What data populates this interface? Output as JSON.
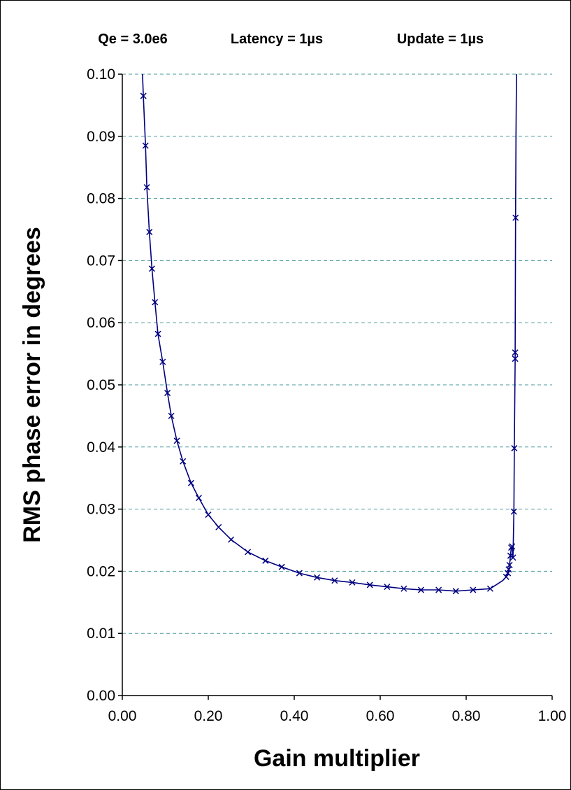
{
  "chart_data": {
    "type": "line",
    "title_parts": [
      "Qe = 3.0e6",
      "Latency = 1µs",
      "Update = 1µs"
    ],
    "xlabel": "Gain multiplier",
    "ylabel": "RMS phase error in degrees",
    "xlim": [
      0.0,
      1.0
    ],
    "ylim": [
      0.0,
      0.1
    ],
    "x_ticks": [
      "0.00",
      "0.20",
      "0.40",
      "0.60",
      "0.80",
      "1.00"
    ],
    "y_ticks": [
      "0.00",
      "0.01",
      "0.02",
      "0.03",
      "0.04",
      "0.05",
      "0.06",
      "0.07",
      "0.08",
      "0.09",
      "0.10"
    ],
    "grid": "horizontal dashed",
    "marker": "x",
    "colors": {
      "series": "#000080",
      "grid": "#4a9a9a",
      "axis": "#000000"
    },
    "series": [
      {
        "line_x": [
          0.047,
          0.049,
          0.054,
          0.057,
          0.063,
          0.069,
          0.076,
          0.083,
          0.094,
          0.105,
          0.114,
          0.127,
          0.141,
          0.16,
          0.178,
          0.2,
          0.224,
          0.253,
          0.292,
          0.333,
          0.371,
          0.412,
          0.453,
          0.494,
          0.535,
          0.576,
          0.616,
          0.655,
          0.695,
          0.736,
          0.776,
          0.816,
          0.856,
          0.885,
          0.893,
          0.897,
          0.899,
          0.901,
          0.903,
          0.905,
          0.907,
          0.909,
          0.911,
          0.912,
          0.914,
          0.914,
          0.915,
          0.916,
          0.917
        ],
        "line_y": [
          0.1,
          0.0965,
          0.0885,
          0.0818,
          0.0746,
          0.0687,
          0.0633,
          0.0582,
          0.0537,
          0.0487,
          0.045,
          0.041,
          0.0377,
          0.0342,
          0.0318,
          0.0291,
          0.0271,
          0.0251,
          0.0231,
          0.0217,
          0.0207,
          0.0197,
          0.019,
          0.0185,
          0.0182,
          0.0178,
          0.0175,
          0.0172,
          0.017,
          0.017,
          0.0168,
          0.017,
          0.0172,
          0.0185,
          0.0191,
          0.0197,
          0.0203,
          0.021,
          0.0225,
          0.0238,
          0.024,
          0.0222,
          0.0296,
          0.0398,
          0.0542,
          0.0552,
          0.0769,
          0.09,
          0.1
        ],
        "x": [
          0.049,
          0.054,
          0.057,
          0.063,
          0.069,
          0.076,
          0.083,
          0.094,
          0.105,
          0.114,
          0.127,
          0.141,
          0.16,
          0.178,
          0.2,
          0.224,
          0.253,
          0.292,
          0.333,
          0.371,
          0.412,
          0.453,
          0.494,
          0.535,
          0.576,
          0.616,
          0.655,
          0.695,
          0.736,
          0.776,
          0.816,
          0.856,
          0.893,
          0.897,
          0.899,
          0.901,
          0.903,
          0.905,
          0.907,
          0.909,
          0.911,
          0.912,
          0.914,
          0.914,
          0.915
        ],
        "y": [
          0.0965,
          0.0885,
          0.0818,
          0.0746,
          0.0687,
          0.0633,
          0.0582,
          0.0537,
          0.0487,
          0.045,
          0.041,
          0.0377,
          0.0342,
          0.0318,
          0.0291,
          0.0271,
          0.0251,
          0.0231,
          0.0217,
          0.0207,
          0.0197,
          0.019,
          0.0185,
          0.0182,
          0.0178,
          0.0175,
          0.0172,
          0.017,
          0.017,
          0.0168,
          0.017,
          0.0172,
          0.0191,
          0.0197,
          0.0203,
          0.021,
          0.0225,
          0.0238,
          0.024,
          0.0222,
          0.0296,
          0.0398,
          0.0542,
          0.0552,
          0.0769
        ]
      }
    ]
  }
}
